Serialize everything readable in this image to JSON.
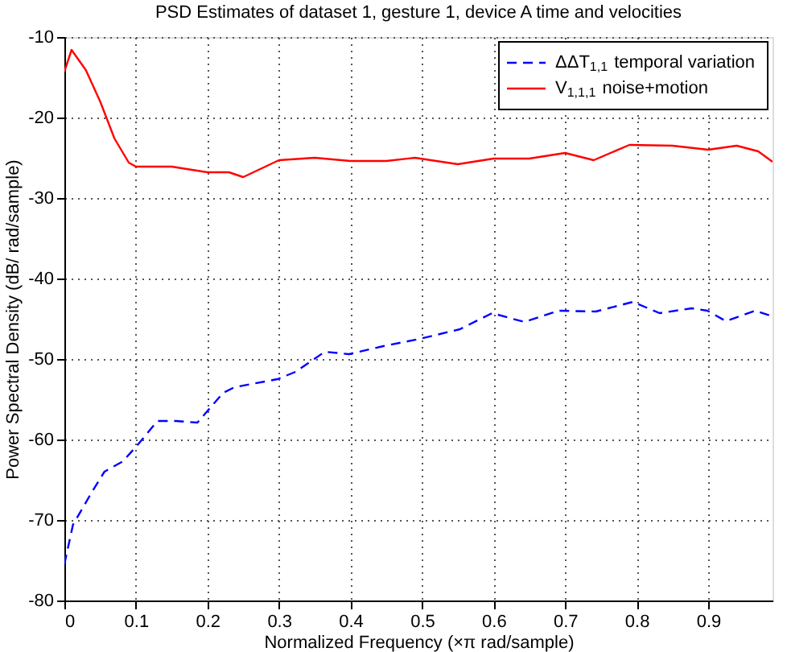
{
  "chart_data": {
    "type": "line",
    "title": "PSD Estimates of dataset 1, gesture 1, device A time and velocities",
    "xlabel": "Normalized Frequency  (×π rad/sample)",
    "ylabel": "Power Spectral Density (dB/ rad/sample)",
    "xlim": [
      0,
      0.99
    ],
    "xticks": [
      0,
      0.1,
      0.2,
      0.3,
      0.4,
      0.5,
      0.6,
      0.7,
      0.8,
      0.9
    ],
    "ylim": [
      -80,
      -10
    ],
    "yticks": [
      -80,
      -70,
      -60,
      -50,
      -40,
      -30,
      -20,
      -10
    ],
    "grid": true,
    "legend": "top right",
    "series": [
      {
        "name": "ΔΔT$_{1,1}$ temporal variation",
        "color": "#0000ff",
        "line_style": "dashed",
        "x": [
          0,
          0.012,
          0.038,
          0.056,
          0.082,
          0.104,
          0.13,
          0.156,
          0.186,
          0.222,
          0.238,
          0.298,
          0.323,
          0.364,
          0.398,
          0.446,
          0.497,
          0.553,
          0.598,
          0.643,
          0.691,
          0.743,
          0.795,
          0.832,
          0.877,
          0.899,
          0.925,
          0.966,
          0.99
        ],
        "values": [
          -75.5,
          -70.6,
          -66.6,
          -64.0,
          -62.7,
          -60.5,
          -57.7,
          -57.7,
          -57.9,
          -54.2,
          -53.5,
          -52.5,
          -51.6,
          -49.1,
          -49.4,
          -48.4,
          -47.5,
          -46.3,
          -44.3,
          -45.4,
          -44.0,
          -44.1,
          -42.9,
          -44.3,
          -43.7,
          -44.0,
          -45.3,
          -44.0,
          -44.7
        ]
      },
      {
        "name": "V$_{1,1,1}$ noise+motion",
        "color": "#ff0000",
        "line_style": "solid",
        "x": [
          0,
          0.01,
          0.03,
          0.05,
          0.07,
          0.09,
          0.1,
          0.15,
          0.2,
          0.23,
          0.25,
          0.3,
          0.35,
          0.4,
          0.45,
          0.49,
          0.55,
          0.6,
          0.65,
          0.7,
          0.74,
          0.79,
          0.85,
          0.9,
          0.94,
          0.97,
          0.99
        ],
        "values": [
          -14.3,
          -11.6,
          -14.1,
          -18.0,
          -22.6,
          -25.6,
          -26.1,
          -26.1,
          -26.8,
          -26.8,
          -27.4,
          -25.3,
          -25.0,
          -25.4,
          -25.4,
          -25.0,
          -25.8,
          -25.1,
          -25.1,
          -24.4,
          -25.3,
          -23.4,
          -23.5,
          -24.0,
          -23.5,
          -24.2,
          -25.5
        ]
      }
    ]
  }
}
